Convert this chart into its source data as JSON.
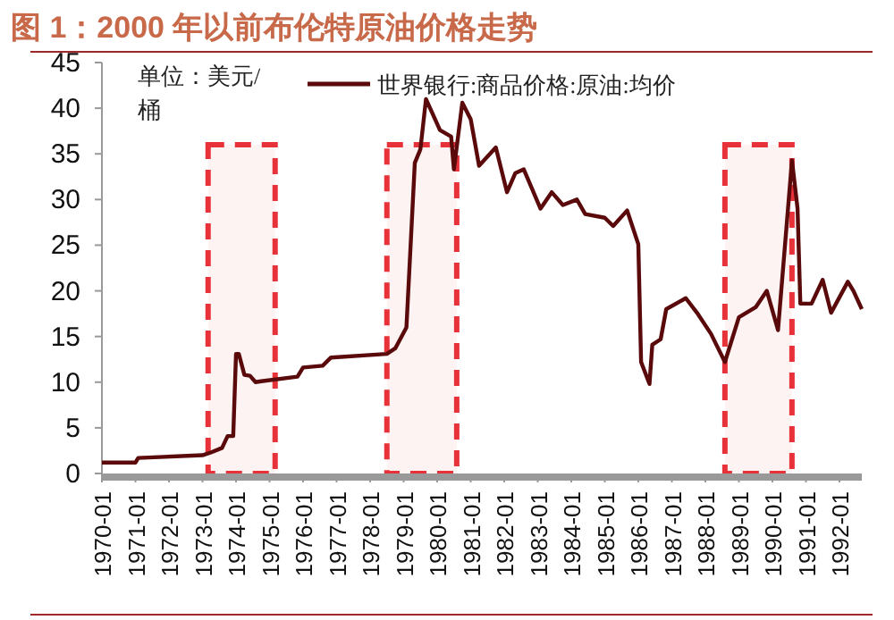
{
  "chart_data": {
    "type": "line",
    "title": "图 1：2000 年以前布伦特原油价格走势",
    "ylabel": "单位：美元/桶",
    "x": [
      "1970-01",
      "1971-01",
      "1971-02",
      "1973-01",
      "1973-04",
      "1973-08",
      "1973-10",
      "1973-12",
      "1974-01",
      "1974-02",
      "1974-04",
      "1974-06",
      "1974-08",
      "1974-10",
      "1975-11",
      "1976-01",
      "1976-08",
      "1976-11",
      "1978-07",
      "1978-10",
      "1979-02",
      "1979-05",
      "1979-07",
      "1979-09",
      "1980-02",
      "1980-06",
      "1980-07",
      "1980-10",
      "1981-01",
      "1981-04",
      "1981-10",
      "1982-02",
      "1982-05",
      "1982-08",
      "1983-02",
      "1983-06",
      "1983-10",
      "1984-03",
      "1984-06",
      "1985-01",
      "1985-04",
      "1985-09",
      "1986-01",
      "1986-02",
      "1986-05",
      "1986-06",
      "1986-09",
      "1986-11",
      "1987-06",
      "1987-10",
      "1988-03",
      "1988-08",
      "1989-01",
      "1989-07",
      "1989-11",
      "1990-03",
      "1990-08",
      "1990-10",
      "1990-11",
      "1991-03",
      "1991-07",
      "1991-10",
      "1992-04",
      "1992-06",
      "1992-09"
    ],
    "series": [
      {
        "name": "世界银行:商品价格:原油:均价",
        "color": "#5a0a0a",
        "values": [
          1.2,
          1.2,
          1.7,
          2.0,
          2.3,
          2.8,
          4.1,
          4.1,
          13.1,
          13.1,
          10.8,
          10.7,
          10.0,
          10.1,
          10.6,
          11.6,
          11.8,
          12.7,
          13.1,
          13.7,
          16.0,
          34.0,
          35.5,
          41.0,
          37.6,
          36.9,
          33.3,
          40.6,
          38.8,
          33.7,
          35.7,
          30.8,
          32.9,
          33.3,
          29.0,
          30.8,
          29.4,
          30.0,
          28.4,
          28.0,
          27.1,
          28.8,
          25.1,
          12.2,
          9.8,
          14.1,
          14.7,
          18.0,
          19.2,
          17.6,
          15.3,
          12.2,
          17.1,
          18.2,
          20.0,
          15.7,
          34.3,
          29.0,
          18.6,
          18.6,
          21.2,
          17.6,
          21.0,
          20.0,
          18.0
        ]
      }
    ],
    "xlim": [
      "1970-01",
      "1992-09"
    ],
    "xticks": [
      "1970-01",
      "1971-01",
      "1972-01",
      "1973-01",
      "1974-01",
      "1975-01",
      "1976-01",
      "1977-01",
      "1978-01",
      "1979-01",
      "1980-01",
      "1981-01",
      "1982-01",
      "1983-01",
      "1984-01",
      "1985-01",
      "1986-01",
      "1987-01",
      "1988-01",
      "1989-01",
      "1990-01",
      "1991-01",
      "1992-01"
    ],
    "ylim": [
      0,
      45
    ],
    "yticks": [
      0,
      5,
      10,
      15,
      20,
      25,
      30,
      35,
      40,
      45
    ],
    "bands": [
      {
        "axis": "x",
        "from": "1973-03",
        "to": "1975-03",
        "color": "#e8323a"
      },
      {
        "axis": "x",
        "from": "1978-07",
        "to": "1980-08",
        "color": "#e8323a"
      },
      {
        "axis": "x",
        "from": "1988-08",
        "to": "1990-08",
        "color": "#e8323a"
      }
    ],
    "legend": "top",
    "grid": false
  }
}
